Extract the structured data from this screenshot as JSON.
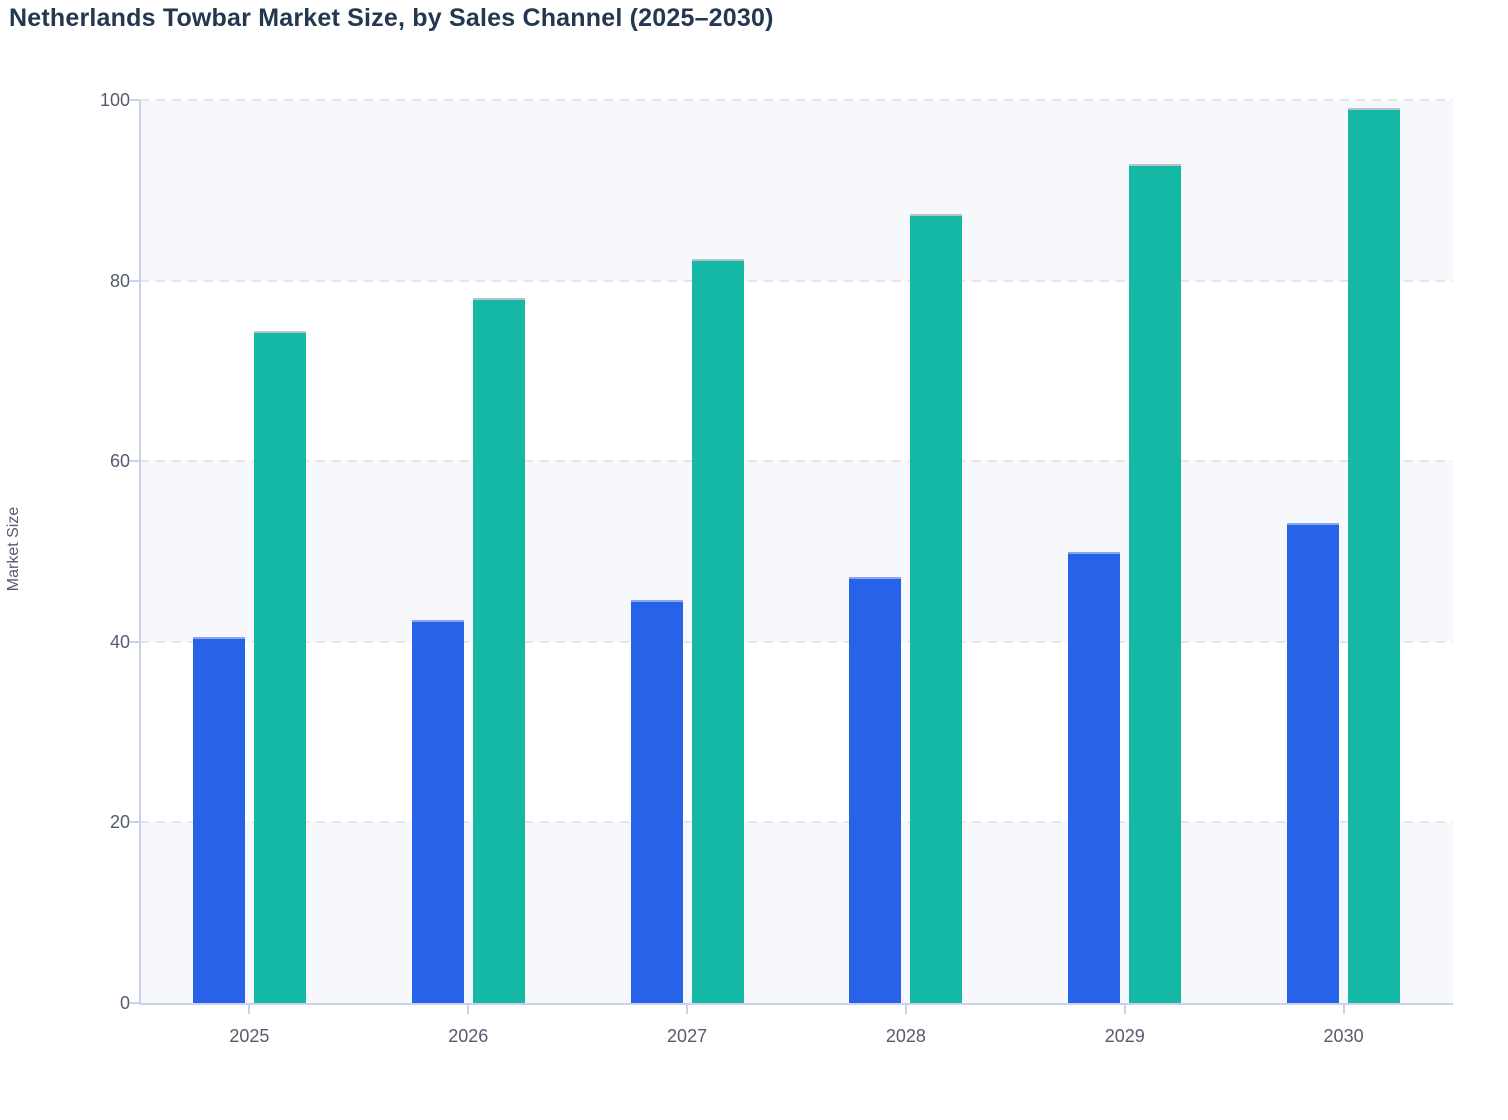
{
  "chart_data": {
    "type": "bar",
    "title": "Netherlands Towbar Market Size, by Sales Channel (2025–2030)",
    "ylabel": "Market Size",
    "xlabel": "",
    "categories": [
      "2025",
      "2026",
      "2027",
      "2028",
      "2029",
      "2030"
    ],
    "series": [
      {
        "id": "series-1",
        "color": "#2763e8",
        "edge_color": "#8aa4f0",
        "values": [
          40.5,
          42.4,
          44.6,
          47.2,
          49.9,
          53.2
        ]
      },
      {
        "id": "series-2",
        "color": "#15b8a5",
        "edge_color": "#b7c0cb",
        "values": [
          74.4,
          78.1,
          82.4,
          87.4,
          92.9,
          99.1
        ]
      }
    ],
    "ylim": [
      0,
      100
    ],
    "yticks": [
      0,
      20,
      40,
      60,
      80,
      100
    ],
    "grid": "horizontal-dashed",
    "legend": "none",
    "plot_bands": {
      "color": "#f7f8fb",
      "ranges": [
        [
          0,
          20
        ],
        [
          40,
          60
        ],
        [
          80,
          100
        ]
      ]
    },
    "colors": {
      "title_text": "#233750",
      "tick_label_text": "#545b6e",
      "axis_line": "#c9d1ec",
      "gridline": "#e3e5ea",
      "page_background": "#ffffff"
    }
  }
}
